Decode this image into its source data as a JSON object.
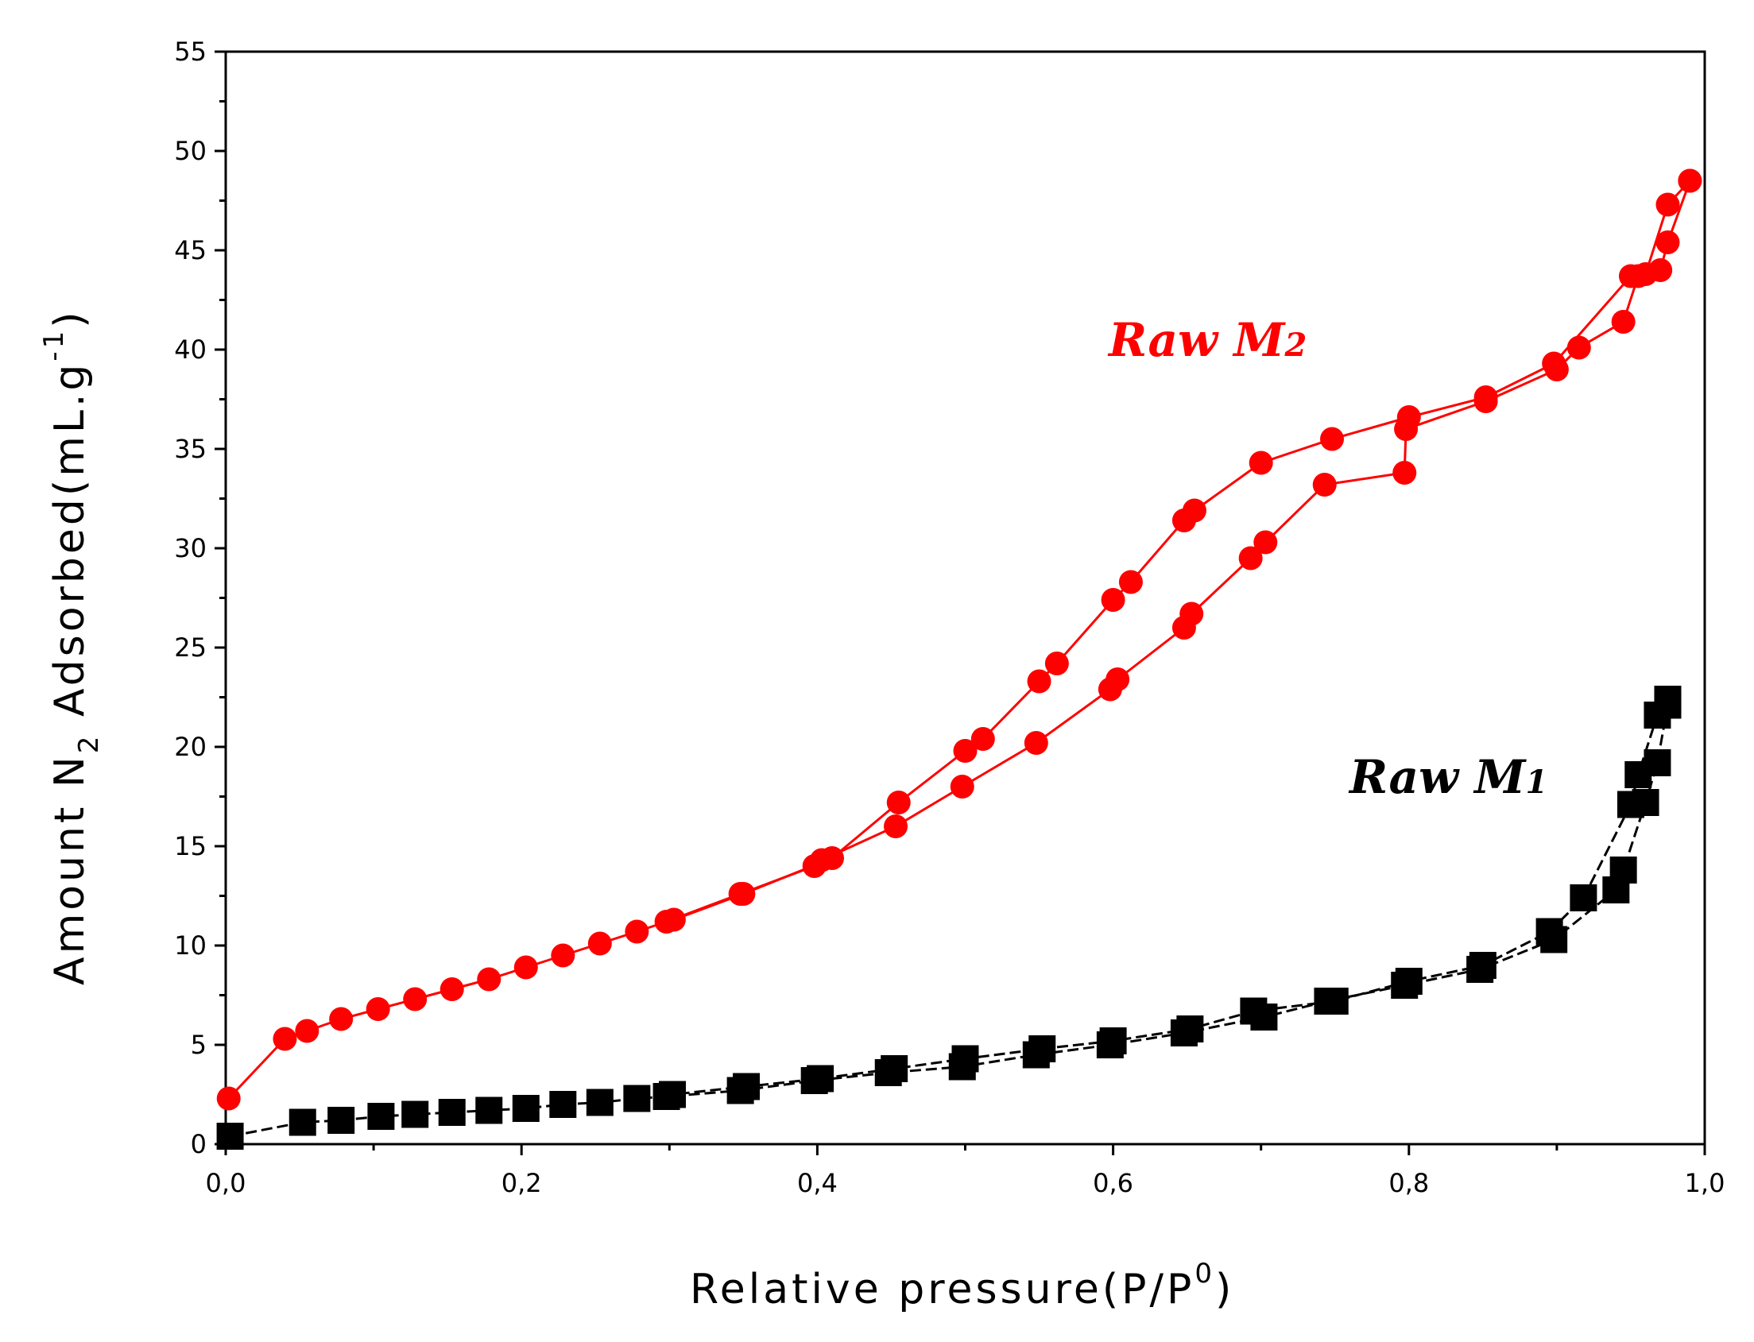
{
  "chart_data": {
    "type": "line",
    "title": "",
    "xlabel": {
      "main": "Relative pressure(P/P",
      "sup": "0",
      "close": ")"
    },
    "ylabel": {
      "pre": "Amount N",
      "sub": "2",
      "mid": " Adsorbed(mL.g",
      "sup": "-1",
      "close": ")"
    },
    "xlim": [
      0.0,
      1.0
    ],
    "ylim": [
      0,
      55
    ],
    "x_ticks": [
      0.0,
      0.2,
      0.4,
      0.6,
      0.8,
      1.0
    ],
    "x_tick_labels": [
      "0,0",
      "0,2",
      "0,4",
      "0,6",
      "0,8",
      "1,0"
    ],
    "y_ticks": [
      0,
      5,
      10,
      15,
      20,
      25,
      30,
      35,
      40,
      45,
      50,
      55
    ],
    "y_tick_labels": [
      "0",
      "5",
      "10",
      "15",
      "20",
      "25",
      "30",
      "35",
      "40",
      "45",
      "50",
      "55"
    ],
    "grid": false,
    "series": [
      {
        "name": "Raw M2",
        "label_main": "Raw M",
        "label_sub": "2",
        "color": "#ff0000",
        "marker": "circle",
        "adsorption": {
          "x": [
            0.002,
            0.04,
            0.055,
            0.078,
            0.103,
            0.128,
            0.153,
            0.178,
            0.203,
            0.228,
            0.253,
            0.278,
            0.298,
            0.348,
            0.398,
            0.403,
            0.453,
            0.498,
            0.548,
            0.598,
            0.603,
            0.648,
            0.653,
            0.693,
            0.703,
            0.743,
            0.797,
            0.798,
            0.852,
            0.9,
            0.915,
            0.945,
            0.955,
            0.97,
            0.975,
            0.99
          ],
          "y": [
            2.3,
            5.3,
            5.7,
            6.3,
            6.8,
            7.3,
            7.8,
            8.3,
            8.9,
            9.5,
            10.1,
            10.7,
            11.2,
            12.6,
            14.0,
            14.3,
            16.0,
            18.0,
            20.2,
            22.9,
            23.4,
            26.0,
            26.7,
            29.5,
            30.3,
            33.2,
            33.8,
            36.0,
            37.4,
            39.0,
            40.1,
            41.4,
            43.7,
            44.0,
            45.4,
            48.5
          ]
        },
        "desorption": {
          "x": [
            0.99,
            0.975,
            0.96,
            0.95,
            0.898,
            0.852,
            0.8,
            0.748,
            0.7,
            0.655,
            0.648,
            0.612,
            0.6,
            0.562,
            0.55,
            0.512,
            0.5,
            0.455,
            0.41,
            0.35,
            0.303
          ],
          "y": [
            48.5,
            47.3,
            43.8,
            43.7,
            39.3,
            37.6,
            36.6,
            35.5,
            34.3,
            31.9,
            31.4,
            28.3,
            27.4,
            24.2,
            23.3,
            20.4,
            19.8,
            17.2,
            14.4,
            12.6,
            11.3
          ]
        }
      },
      {
        "name": "Raw M1",
        "label_main": "Raw M",
        "label_sub": "1",
        "color": "#000000",
        "marker": "square",
        "adsorption": {
          "x": [
            0.003,
            0.052,
            0.078,
            0.105,
            0.128,
            0.153,
            0.178,
            0.203,
            0.228,
            0.253,
            0.278,
            0.298,
            0.348,
            0.398,
            0.448,
            0.498,
            0.548,
            0.598,
            0.648,
            0.702,
            0.745,
            0.797,
            0.848,
            0.898,
            0.94,
            0.945,
            0.96,
            0.968,
            0.975
          ],
          "y": [
            0.4,
            1.1,
            1.2,
            1.4,
            1.5,
            1.6,
            1.7,
            1.8,
            2.0,
            2.1,
            2.3,
            2.4,
            2.7,
            3.2,
            3.6,
            3.9,
            4.5,
            5.0,
            5.6,
            6.4,
            7.2,
            8.0,
            8.8,
            10.3,
            12.8,
            13.8,
            17.2,
            19.2,
            22.1
          ]
        },
        "desorption": {
          "x": [
            0.975,
            0.968,
            0.955,
            0.95,
            0.918,
            0.895,
            0.85,
            0.8,
            0.75,
            0.695,
            0.652,
            0.6,
            0.552,
            0.5,
            0.452,
            0.402,
            0.352,
            0.302
          ],
          "y": [
            22.4,
            21.6,
            18.6,
            17.1,
            12.4,
            10.7,
            9.0,
            8.2,
            7.2,
            6.7,
            5.8,
            5.2,
            4.8,
            4.3,
            3.8,
            3.3,
            2.9,
            2.5
          ]
        }
      }
    ]
  }
}
